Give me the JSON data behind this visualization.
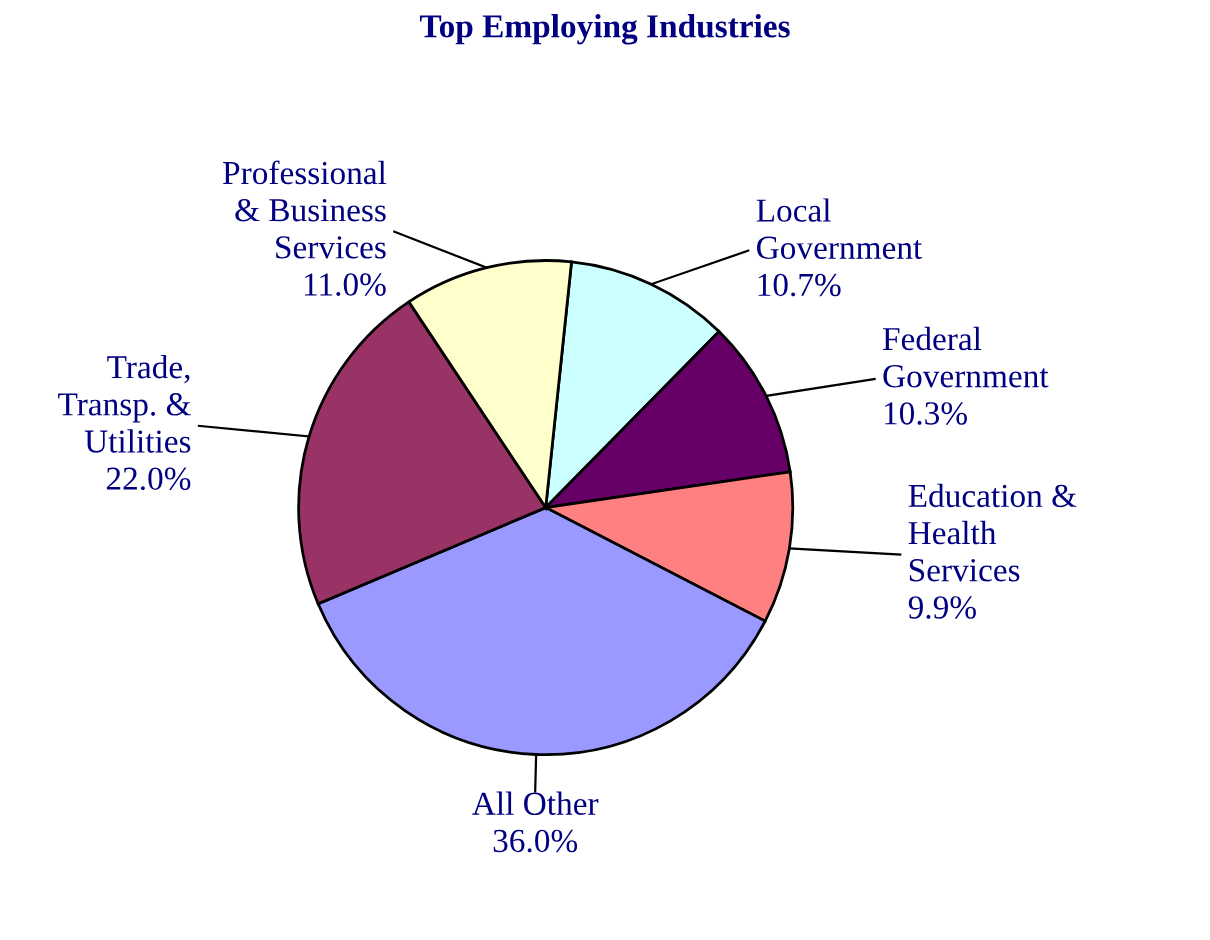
{
  "chart_data": {
    "type": "pie",
    "title": "Top Employing Industries",
    "categories": [
      "Local\nGovernment",
      "Federal\nGovernment",
      "Education &\nHealth\nServices",
      "All Other",
      "Trade,\nTransp. &\nUtilities",
      "Professional\n& Business\nServices"
    ],
    "values": [
      10.7,
      10.3,
      9.9,
      36.0,
      22.0,
      11.0
    ],
    "value_labels": [
      "10.7%",
      "10.3%",
      "9.9%",
      "36.0%",
      "22.0%",
      "11.0%"
    ],
    "colors": [
      "#ccffff",
      "#660066",
      "#ff8080",
      "#9999ff",
      "#993366",
      "#ffffcc"
    ],
    "legend": false
  }
}
